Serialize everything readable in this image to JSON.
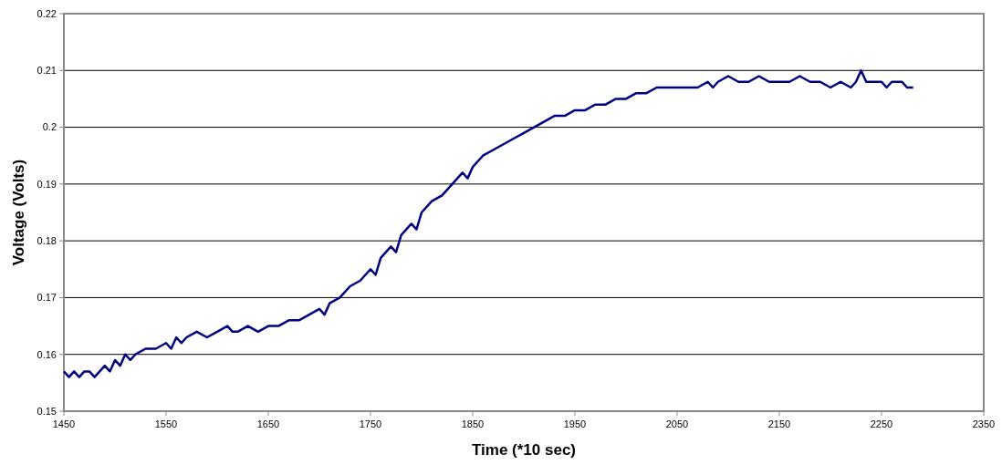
{
  "chart_data": {
    "type": "line",
    "xlabel": "Time (*10 sec)",
    "ylabel": "Voltage (Volts)",
    "xlim": [
      1450,
      2350
    ],
    "xticks": [
      1450,
      1550,
      1650,
      1750,
      1850,
      1950,
      2050,
      2150,
      2250,
      2350
    ],
    "ylim": [
      0.15,
      0.22
    ],
    "yticks": [
      0.15,
      0.16,
      0.17,
      0.18,
      0.19,
      0.2,
      0.21,
      0.22
    ],
    "grid": "y",
    "marker": "none",
    "line_style": "solid",
    "series": [
      {
        "color": "#000080",
        "x": [
          1450,
          1455,
          1460,
          1465,
          1470,
          1475,
          1480,
          1485,
          1490,
          1495,
          1500,
          1505,
          1510,
          1515,
          1520,
          1530,
          1540,
          1550,
          1555,
          1560,
          1565,
          1570,
          1580,
          1590,
          1600,
          1610,
          1615,
          1620,
          1630,
          1640,
          1650,
          1660,
          1670,
          1680,
          1690,
          1700,
          1705,
          1710,
          1720,
          1730,
          1740,
          1750,
          1755,
          1760,
          1770,
          1775,
          1780,
          1790,
          1795,
          1800,
          1810,
          1820,
          1830,
          1840,
          1845,
          1850,
          1860,
          1870,
          1880,
          1890,
          1900,
          1910,
          1920,
          1930,
          1940,
          1950,
          1960,
          1970,
          1980,
          1990,
          2000,
          2010,
          2020,
          2030,
          2040,
          2050,
          2060,
          2070,
          2080,
          2085,
          2090,
          2100,
          2110,
          2120,
          2130,
          2140,
          2150,
          2160,
          2170,
          2180,
          2190,
          2200,
          2210,
          2220,
          2225,
          2230,
          2235,
          2240,
          2250,
          2255,
          2260,
          2270,
          2275,
          2281
        ],
        "values": [
          0.157,
          0.156,
          0.157,
          0.156,
          0.157,
          0.157,
          0.156,
          0.157,
          0.158,
          0.157,
          0.159,
          0.158,
          0.16,
          0.159,
          0.16,
          0.161,
          0.161,
          0.162,
          0.161,
          0.163,
          0.162,
          0.163,
          0.164,
          0.163,
          0.164,
          0.165,
          0.164,
          0.164,
          0.165,
          0.164,
          0.165,
          0.165,
          0.166,
          0.166,
          0.167,
          0.168,
          0.167,
          0.169,
          0.17,
          0.172,
          0.173,
          0.175,
          0.174,
          0.177,
          0.179,
          0.178,
          0.181,
          0.183,
          0.182,
          0.185,
          0.187,
          0.188,
          0.19,
          0.192,
          0.191,
          0.193,
          0.195,
          0.196,
          0.197,
          0.198,
          0.199,
          0.2,
          0.201,
          0.202,
          0.202,
          0.203,
          0.203,
          0.204,
          0.204,
          0.205,
          0.205,
          0.206,
          0.206,
          0.207,
          0.207,
          0.207,
          0.207,
          0.207,
          0.208,
          0.207,
          0.208,
          0.209,
          0.208,
          0.208,
          0.209,
          0.208,
          0.208,
          0.208,
          0.209,
          0.208,
          0.208,
          0.207,
          0.208,
          0.207,
          0.208,
          0.21,
          0.208,
          0.208,
          0.208,
          0.207,
          0.208,
          0.208,
          0.207,
          0.207
        ]
      }
    ]
  }
}
